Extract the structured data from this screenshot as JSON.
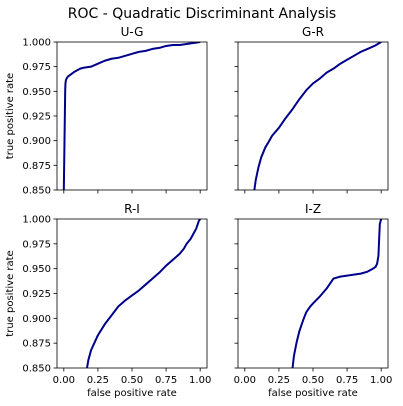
{
  "figure": {
    "title": "ROC - Quadratic Discriminant Analysis"
  },
  "chart_data": [
    {
      "type": "line",
      "title": "U-G",
      "xlabel": "",
      "ylabel": "true positive rate",
      "xlim": [
        -0.05,
        1.05
      ],
      "ylim": [
        0.85,
        1.0
      ],
      "xticks": [
        "0.00",
        "0.25",
        "0.50",
        "0.75",
        "1.00"
      ],
      "xtick_values": [
        0.0,
        0.25,
        0.5,
        0.75,
        1.0
      ],
      "yticks": [
        "0.850",
        "0.875",
        "0.900",
        "0.925",
        "0.950",
        "0.975",
        "1.000"
      ],
      "ytick_values": [
        0.85,
        0.875,
        0.9,
        0.925,
        0.95,
        0.975,
        1.0
      ],
      "show_xtick_labels": false,
      "show_ytick_labels": true,
      "grid": false,
      "series": [
        {
          "color": "#00008b",
          "x": [
            0.0,
            0.005,
            0.008,
            0.01,
            0.012,
            0.015,
            0.02,
            0.03,
            0.05,
            0.08,
            0.12,
            0.15,
            0.2,
            0.25,
            0.3,
            0.35,
            0.4,
            0.45,
            0.5,
            0.55,
            0.6,
            0.65,
            0.7,
            0.75,
            0.8,
            0.85,
            0.9,
            0.95,
            1.0
          ],
          "y": [
            0.85,
            0.9,
            0.93,
            0.95,
            0.958,
            0.961,
            0.963,
            0.965,
            0.967,
            0.97,
            0.973,
            0.974,
            0.975,
            0.978,
            0.981,
            0.983,
            0.984,
            0.986,
            0.988,
            0.99,
            0.991,
            0.993,
            0.994,
            0.996,
            0.997,
            0.997,
            0.998,
            0.999,
            1.0
          ]
        }
      ]
    },
    {
      "type": "line",
      "title": "G-R",
      "xlabel": "",
      "ylabel": "",
      "xlim": [
        -0.05,
        1.05
      ],
      "ylim": [
        0.85,
        1.0
      ],
      "xticks": [
        "0.00",
        "0.25",
        "0.50",
        "0.75",
        "1.00"
      ],
      "xtick_values": [
        0.0,
        0.25,
        0.5,
        0.75,
        1.0
      ],
      "yticks": [
        "0.850",
        "0.875",
        "0.900",
        "0.925",
        "0.950",
        "0.975",
        "1.000"
      ],
      "ytick_values": [
        0.85,
        0.875,
        0.9,
        0.925,
        0.95,
        0.975,
        1.0
      ],
      "show_xtick_labels": false,
      "show_ytick_labels": false,
      "grid": false,
      "series": [
        {
          "color": "#00008b",
          "x": [
            0.07,
            0.08,
            0.1,
            0.12,
            0.15,
            0.18,
            0.2,
            0.25,
            0.3,
            0.35,
            0.4,
            0.45,
            0.5,
            0.55,
            0.6,
            0.65,
            0.7,
            0.75,
            0.8,
            0.85,
            0.9,
            0.95,
            1.0
          ],
          "y": [
            0.85,
            0.86,
            0.873,
            0.883,
            0.893,
            0.9,
            0.905,
            0.913,
            0.923,
            0.932,
            0.942,
            0.951,
            0.958,
            0.963,
            0.969,
            0.973,
            0.978,
            0.982,
            0.986,
            0.99,
            0.993,
            0.996,
            1.0
          ]
        }
      ]
    },
    {
      "type": "line",
      "title": "R-I",
      "xlabel": "false positive rate",
      "ylabel": "true positive rate",
      "xlim": [
        -0.05,
        1.05
      ],
      "ylim": [
        0.85,
        1.0
      ],
      "xticks": [
        "0.00",
        "0.25",
        "0.50",
        "0.75",
        "1.00"
      ],
      "xtick_values": [
        0.0,
        0.25,
        0.5,
        0.75,
        1.0
      ],
      "yticks": [
        "0.850",
        "0.875",
        "0.900",
        "0.925",
        "0.950",
        "0.975",
        "1.000"
      ],
      "ytick_values": [
        0.85,
        0.875,
        0.9,
        0.925,
        0.95,
        0.975,
        1.0
      ],
      "show_xtick_labels": true,
      "show_ytick_labels": true,
      "grid": false,
      "series": [
        {
          "color": "#00008b",
          "x": [
            0.17,
            0.18,
            0.2,
            0.23,
            0.25,
            0.3,
            0.35,
            0.4,
            0.45,
            0.5,
            0.55,
            0.6,
            0.65,
            0.7,
            0.75,
            0.8,
            0.85,
            0.88,
            0.9,
            0.93,
            0.95,
            0.97,
            0.99,
            1.0
          ],
          "y": [
            0.85,
            0.858,
            0.868,
            0.877,
            0.883,
            0.894,
            0.903,
            0.912,
            0.918,
            0.923,
            0.928,
            0.934,
            0.94,
            0.946,
            0.953,
            0.959,
            0.965,
            0.97,
            0.975,
            0.98,
            0.985,
            0.99,
            0.998,
            1.0
          ]
        }
      ]
    },
    {
      "type": "line",
      "title": "I-Z",
      "xlabel": "false positive rate",
      "ylabel": "",
      "xlim": [
        -0.05,
        1.05
      ],
      "ylim": [
        0.85,
        1.0
      ],
      "xticks": [
        "0.00",
        "0.25",
        "0.50",
        "0.75",
        "1.00"
      ],
      "xtick_values": [
        0.0,
        0.25,
        0.5,
        0.75,
        1.0
      ],
      "yticks": [
        "0.850",
        "0.875",
        "0.900",
        "0.925",
        "0.950",
        "0.975",
        "1.000"
      ],
      "ytick_values": [
        0.85,
        0.875,
        0.9,
        0.925,
        0.95,
        0.975,
        1.0
      ],
      "show_xtick_labels": true,
      "show_ytick_labels": false,
      "grid": false,
      "series": [
        {
          "color": "#00008b",
          "x": [
            0.35,
            0.36,
            0.38,
            0.4,
            0.43,
            0.45,
            0.48,
            0.5,
            0.55,
            0.6,
            0.63,
            0.65,
            0.7,
            0.75,
            0.8,
            0.85,
            0.9,
            0.94,
            0.96,
            0.97,
            0.98,
            0.985,
            0.99,
            1.0
          ],
          "y": [
            0.85,
            0.862,
            0.876,
            0.887,
            0.899,
            0.906,
            0.912,
            0.915,
            0.922,
            0.93,
            0.936,
            0.94,
            0.942,
            0.943,
            0.944,
            0.945,
            0.947,
            0.95,
            0.952,
            0.955,
            0.963,
            0.98,
            0.995,
            1.0
          ]
        }
      ]
    }
  ]
}
